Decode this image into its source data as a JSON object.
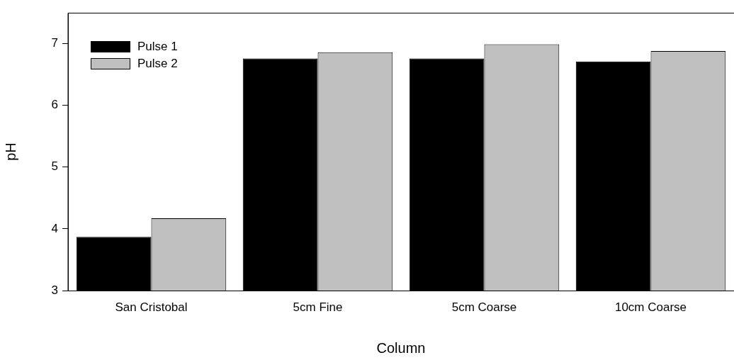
{
  "chart_data": {
    "type": "bar",
    "xlabel": "Column",
    "ylabel": "pH",
    "categories": [
      "San Cristobal",
      "5cm Fine",
      "5cm Coarse",
      "10cm Coarse"
    ],
    "series": [
      {
        "name": "Pulse 1",
        "color": "#000000",
        "values": [
          3.87,
          6.76,
          6.76,
          6.71
        ]
      },
      {
        "name": "Pulse 2",
        "color": "#c0c0c0",
        "values": [
          4.17,
          6.86,
          6.99,
          6.88
        ]
      }
    ],
    "ylim": [
      3,
      7.5
    ],
    "yticks": [
      3,
      4,
      5,
      6,
      7
    ],
    "grid": false,
    "legend": "top left"
  }
}
